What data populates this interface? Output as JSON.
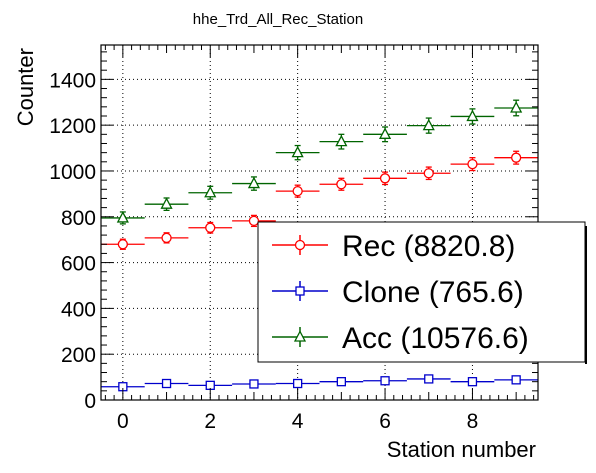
{
  "chart_data": {
    "type": "scatter",
    "title": "hhe_Trd_All_Rec_Station",
    "xlabel": "Station number",
    "ylabel": "Counter",
    "xlim": [
      -0.5,
      9.5
    ],
    "ylim": [
      0,
      1550
    ],
    "x_ticks": [
      0,
      2,
      4,
      6,
      8
    ],
    "y_ticks": [
      0,
      200,
      400,
      600,
      800,
      1000,
      1200,
      1400
    ],
    "grid": true,
    "legend_position": "bottom-right",
    "x": [
      0,
      1,
      2,
      3,
      4,
      5,
      6,
      7,
      8,
      9
    ],
    "series": [
      {
        "name": "Rec (8820.8)",
        "color": "#ff0000",
        "marker": "circle",
        "values": [
          680,
          708,
          752,
          782,
          912,
          942,
          968,
          990,
          1030,
          1058
        ],
        "errors": [
          22,
          22,
          23,
          24,
          26,
          26,
          27,
          27,
          28,
          28
        ]
      },
      {
        "name": "Clone (765.6)",
        "color": "#0000cc",
        "marker": "square",
        "values": [
          58,
          72,
          64,
          70,
          72,
          80,
          84,
          92,
          80,
          88
        ],
        "errors": [
          8,
          9,
          8,
          9,
          9,
          9,
          9,
          10,
          9,
          9
        ]
      },
      {
        "name": "Acc (10576.6)",
        "color": "#006400",
        "marker": "triangle",
        "values": [
          795,
          855,
          905,
          945,
          1080,
          1128,
          1160,
          1198,
          1238,
          1275
        ],
        "errors": [
          26,
          27,
          28,
          29,
          31,
          32,
          32,
          33,
          33,
          34
        ]
      }
    ]
  }
}
